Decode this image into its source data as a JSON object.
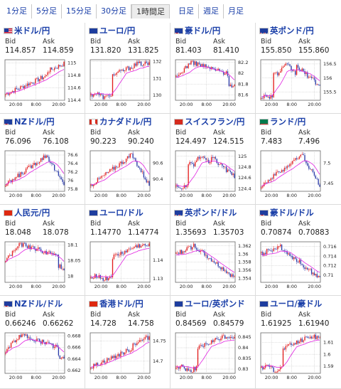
{
  "tabs": [
    "1分足",
    "5分足",
    "15分足",
    "30分足",
    "1時間足",
    "日足",
    "週足",
    "月足"
  ],
  "active_tab": 4,
  "labels": {
    "bid": "Bid",
    "ask": "Ask"
  },
  "colors": {
    "link": "#1a3fa8",
    "up": "#e21d1d",
    "down": "#2a3aa8",
    "ma": "#e020e0",
    "grid": "#bfbfbf"
  },
  "pairs": [
    {
      "name": "米ドル/円",
      "bid": "114.857",
      "ask": "114.859",
      "flag": "us",
      "yticks": [
        "115",
        "114.8",
        "114.6",
        "114.4"
      ],
      "xticks": [
        "20:00",
        "8:00",
        "20:00"
      ],
      "chart_data": {
        "type": "line",
        "series_shape": "rise",
        "ylim": [
          114.4,
          115.05
        ]
      }
    },
    {
      "name": "ユーロ/円",
      "bid": "131.820",
      "ask": "131.825",
      "flag": "eu",
      "yticks": [
        "132",
        "131",
        "130"
      ],
      "xticks": [
        "20:00",
        "8:00",
        "20:00"
      ],
      "chart_data": {
        "type": "line",
        "series_shape": "jump",
        "ylim": [
          129.7,
          132.1
        ]
      }
    },
    {
      "name": "豪ドル/円",
      "bid": "81.403",
      "ask": "81.410",
      "flag": "au",
      "yticks": [
        "82.2",
        "82",
        "81.8",
        "81.6"
      ],
      "xticks": [
        "20:00",
        "8:00",
        "20:00"
      ],
      "chart_data": {
        "type": "line",
        "series_shape": "peakfall",
        "ylim": [
          81.5,
          82.25
        ]
      }
    },
    {
      "name": "英ポンド/円",
      "bid": "155.850",
      "ask": "155.860",
      "flag": "gb",
      "yticks": [
        "156.5",
        "156",
        "155.5"
      ],
      "xticks": [
        "20:00",
        "8:00",
        "20:00"
      ],
      "chart_data": {
        "type": "line",
        "series_shape": "jumpfall",
        "ylim": [
          155.2,
          156.65
        ]
      }
    },
    {
      "name": "NZドル/円",
      "bid": "76.096",
      "ask": "76.108",
      "flag": "nz",
      "yticks": [
        "76.6",
        "76.4",
        "76.2",
        "76",
        "75.8"
      ],
      "xticks": [
        "20:00",
        "8:00",
        "20:00"
      ],
      "chart_data": {
        "type": "line",
        "series_shape": "risefall",
        "ylim": [
          75.75,
          76.7
        ]
      }
    },
    {
      "name": "カナダドル/円",
      "bid": "90.223",
      "ask": "90.240",
      "flag": "ca",
      "yticks": [
        "90.6",
        "90.4"
      ],
      "xticks": [
        "20:00",
        "8:00",
        "20:00"
      ],
      "chart_data": {
        "type": "line",
        "series_shape": "risefall",
        "ylim": [
          90.25,
          90.75
        ]
      }
    },
    {
      "name": "スイスフラン/円",
      "bid": "124.497",
      "ask": "124.515",
      "flag": "ch",
      "yticks": [
        "125",
        "124.8",
        "124.6",
        "124.4"
      ],
      "xticks": [
        "20:00",
        "8:00",
        "20:00"
      ],
      "chart_data": {
        "type": "line",
        "series_shape": "jumpfall",
        "ylim": [
          124.35,
          125.1
        ]
      }
    },
    {
      "name": "ランド/円",
      "bid": "7.483",
      "ask": "7.496",
      "flag": "za",
      "yticks": [
        "7.5",
        "7.45"
      ],
      "xticks": [
        "20:00",
        "8:00",
        "20:00"
      ],
      "chart_data": {
        "type": "line",
        "series_shape": "risefall",
        "ylim": [
          7.43,
          7.53
        ]
      }
    },
    {
      "name": "人民元/円",
      "bid": "18.048",
      "ask": "18.078",
      "flag": "cn",
      "yticks": [
        "18.1",
        "18.05",
        "18"
      ],
      "xticks": [
        "20:00",
        "8:00",
        "20:00"
      ],
      "chart_data": {
        "type": "line",
        "series_shape": "peakfall",
        "ylim": [
          17.98,
          18.11
        ]
      }
    },
    {
      "name": "ユーロ/ドル",
      "bid": "1.14770",
      "ask": "1.14774",
      "flag": "eu",
      "yticks": [
        "1.14",
        "1.13"
      ],
      "xticks": [
        "20:00",
        "8:00",
        "20:00"
      ],
      "chart_data": {
        "type": "line",
        "series_shape": "jump",
        "ylim": [
          1.128,
          1.15
        ]
      }
    },
    {
      "name": "英ポンド/ドル",
      "bid": "1.35693",
      "ask": "1.35703",
      "flag": "gb",
      "yticks": [
        "1.362",
        "1.36",
        "1.358",
        "1.356",
        "1.354"
      ],
      "xticks": [
        "20:00",
        "8:00",
        "20:00"
      ],
      "chart_data": {
        "type": "line",
        "series_shape": "fall",
        "ylim": [
          1.353,
          1.363
        ]
      }
    },
    {
      "name": "豪ドル/ドル",
      "bid": "0.70874",
      "ask": "0.70883",
      "flag": "au",
      "yticks": [
        "0.716",
        "0.714",
        "0.712",
        "0.71"
      ],
      "xticks": [
        "20:00",
        "8:00",
        "20:00"
      ],
      "chart_data": {
        "type": "line",
        "series_shape": "fall",
        "ylim": [
          0.7085,
          0.717
        ]
      }
    },
    {
      "name": "NZドル/ドル",
      "bid": "0.66246",
      "ask": "0.66262",
      "flag": "nz",
      "yticks": [
        "0.668",
        "0.666",
        "0.664",
        "0.662"
      ],
      "xticks": [
        "20:00",
        "8:00",
        "20:00"
      ],
      "chart_data": {
        "type": "line",
        "series_shape": "peakfall",
        "ylim": [
          0.6615,
          0.6685
        ]
      }
    },
    {
      "name": "香港ドル/円",
      "bid": "14.728",
      "ask": "14.758",
      "flag": "hk",
      "yticks": [
        "14.75",
        "14.7"
      ],
      "xticks": [
        "20:00",
        "8:00",
        "20:00"
      ],
      "chart_data": {
        "type": "line",
        "series_shape": "rise",
        "ylim": [
          14.67,
          14.77
        ]
      }
    },
    {
      "name": "ユーロ/英ポンド",
      "bid": "0.84569",
      "ask": "0.84579",
      "flag": "eu",
      "yticks": [
        "0.845",
        "0.84",
        "0.835",
        "0.83"
      ],
      "xticks": [
        "20:00",
        "8:00",
        "20:00"
      ],
      "chart_data": {
        "type": "line",
        "series_shape": "jump",
        "ylim": [
          0.828,
          0.847
        ]
      }
    },
    {
      "name": "ユーロ/豪ドル",
      "bid": "1.61925",
      "ask": "1.61940",
      "flag": "eu",
      "yticks": [
        "1.61",
        "1.6",
        "1.59"
      ],
      "xticks": [
        "20:00",
        "8:00",
        "20:00"
      ],
      "chart_data": {
        "type": "line",
        "series_shape": "jump",
        "ylim": [
          1.584,
          1.618
        ]
      }
    }
  ]
}
